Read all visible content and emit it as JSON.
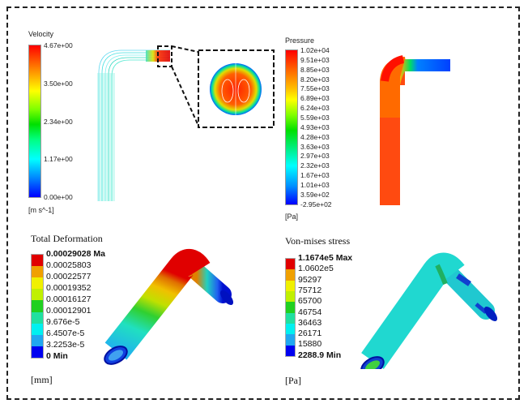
{
  "velocity": {
    "title": "Velocity",
    "unit": "[m s^-1]",
    "labels": [
      "4.67e+00",
      "3.50e+00",
      "2.34e+00",
      "1.17e+00",
      "0.00e+00"
    ],
    "range": [
      0,
      4.67
    ]
  },
  "pressure": {
    "title": "Pressure",
    "unit": "[Pa]",
    "labels": [
      "1.02e+04",
      "9.51e+03",
      "8.85e+03",
      "8.20e+03",
      "7.55e+03",
      "6.89e+03",
      "6.24e+03",
      "5.59e+03",
      "4.93e+03",
      "4.28e+03",
      "3.63e+03",
      "2.97e+03",
      "2.32e+03",
      "1.67e+03",
      "1.01e+03",
      "3.59e+02",
      "-2.95e+02"
    ]
  },
  "deformation": {
    "title": "Total Deformation",
    "unit": "[mm]",
    "labels": [
      "0.00029028 Ma",
      "0.00025803",
      "0.00022577",
      "0.00019352",
      "0.00016127",
      "0.00012901",
      "9.676e-5",
      "6.4507e-5",
      "3.2253e-5",
      "0 Min"
    ]
  },
  "stress": {
    "title": "Von-mises stress",
    "unit": "[Pa]",
    "labels": [
      "1.1674e5 Max",
      "1.0602e5",
      "95297",
      "75712",
      "65700",
      "46754",
      "36463",
      "26171",
      "15880",
      "2288.9 Min"
    ]
  },
  "colors": {
    "bands": [
      "#e00000",
      "#f0a000",
      "#f0f000",
      "#c0f000",
      "#20d020",
      "#20e0a0",
      "#00f0f0",
      "#20a8f0",
      "#0000f0"
    ],
    "frame": "#222222"
  }
}
